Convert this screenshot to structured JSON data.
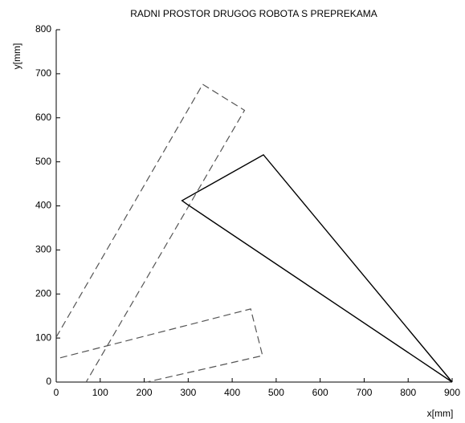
{
  "chart_data": {
    "type": "line",
    "title": "RADNI PROSTOR DRUGOG ROBOTA S PREPREKAMA",
    "xlabel": "x[mm]",
    "ylabel": "y[mm]",
    "xlim": [
      0,
      900
    ],
    "ylim": [
      0,
      800
    ],
    "xticks": [
      0,
      100,
      200,
      300,
      400,
      500,
      600,
      700,
      800,
      900
    ],
    "yticks": [
      0,
      100,
      200,
      300,
      400,
      500,
      600,
      700,
      800
    ],
    "series": [
      {
        "color": "#555555",
        "dashed": true,
        "x": [
          0,
          333,
          428,
          68
        ],
        "values": [
          102,
          676,
          617,
          0
        ]
      },
      {
        "color": "#555555",
        "dashed": true,
        "x": [
          9,
          442,
          469,
          206
        ],
        "values": [
          55,
          166,
          60,
          0
        ]
      },
      {
        "color": "#000000",
        "dashed": false,
        "x": [
          900,
          471,
          286,
          297,
          900
        ],
        "values": [
          0,
          516,
          412,
          404,
          0
        ]
      }
    ]
  }
}
